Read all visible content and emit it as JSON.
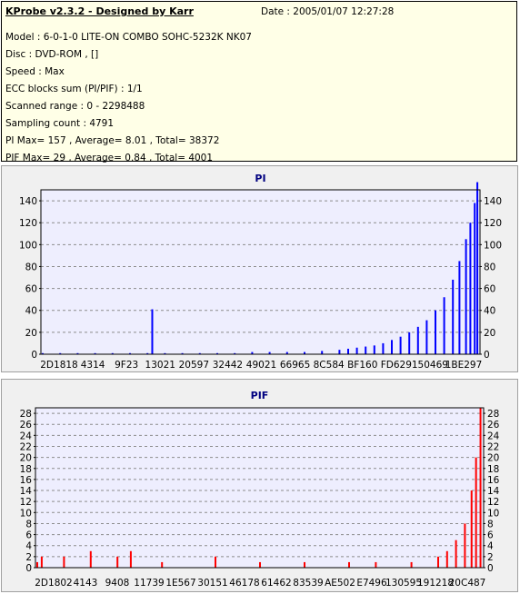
{
  "info": {
    "title": "KProbe v2.3.2 - Designed by Karr",
    "date": "Date : 2005/01/07 12:27:28",
    "lines": [
      "Model : 6-0-1-0 LITE-ON COMBO SOHC-5232K NK07",
      "Disc : DVD-ROM ,  []",
      "Speed : Max",
      "ECC blocks sum (PI/PIF) : 1/1",
      "Scanned range : 0 - 2298488",
      "Sampling count : 4791",
      "PI Max= 157 , Average= 8.01 , Total= 38372",
      "PIF Max= 29 , Average= 0.84 , Total= 4001"
    ]
  },
  "colors": {
    "panel_bg": "#f0f0f0",
    "plot_bg": "#eeeefe",
    "info_bg": "#ffffe7",
    "pi_bar": "#0000ff",
    "pif_bar": "#ff0000",
    "grid": "#8c8c8c"
  },
  "chart_data": [
    {
      "type": "bar",
      "title": "PI",
      "color": "#0000ff",
      "ylim": [
        0,
        150
      ],
      "yticks": [
        0,
        20,
        40,
        60,
        80,
        100,
        120,
        140
      ],
      "xlabels": [
        "2D1818",
        "4314",
        "9F23",
        "13021",
        "20597",
        "32442",
        "49021",
        "66965",
        "8C584",
        "BF160",
        "FD629",
        "150469",
        "1BE297"
      ],
      "grid": true,
      "bars": [
        {
          "pos": 0.0,
          "value": 1
        },
        {
          "pos": 0.04,
          "value": 1
        },
        {
          "pos": 0.08,
          "value": 1
        },
        {
          "pos": 0.12,
          "value": 1
        },
        {
          "pos": 0.16,
          "value": 1
        },
        {
          "pos": 0.2,
          "value": 1
        },
        {
          "pos": 0.24,
          "value": 1
        },
        {
          "pos": 0.251,
          "value": 41
        },
        {
          "pos": 0.28,
          "value": 1
        },
        {
          "pos": 0.32,
          "value": 1
        },
        {
          "pos": 0.36,
          "value": 1
        },
        {
          "pos": 0.4,
          "value": 1
        },
        {
          "pos": 0.44,
          "value": 1
        },
        {
          "pos": 0.48,
          "value": 2
        },
        {
          "pos": 0.52,
          "value": 2
        },
        {
          "pos": 0.56,
          "value": 2
        },
        {
          "pos": 0.6,
          "value": 2
        },
        {
          "pos": 0.64,
          "value": 3
        },
        {
          "pos": 0.68,
          "value": 4
        },
        {
          "pos": 0.7,
          "value": 5
        },
        {
          "pos": 0.72,
          "value": 6
        },
        {
          "pos": 0.74,
          "value": 7
        },
        {
          "pos": 0.76,
          "value": 8
        },
        {
          "pos": 0.78,
          "value": 10
        },
        {
          "pos": 0.8,
          "value": 13
        },
        {
          "pos": 0.82,
          "value": 16
        },
        {
          "pos": 0.84,
          "value": 20
        },
        {
          "pos": 0.86,
          "value": 25
        },
        {
          "pos": 0.88,
          "value": 31
        },
        {
          "pos": 0.9,
          "value": 40
        },
        {
          "pos": 0.92,
          "value": 52
        },
        {
          "pos": 0.94,
          "value": 68
        },
        {
          "pos": 0.955,
          "value": 85
        },
        {
          "pos": 0.97,
          "value": 105
        },
        {
          "pos": 0.98,
          "value": 120
        },
        {
          "pos": 0.99,
          "value": 138
        },
        {
          "pos": 0.996,
          "value": 157
        }
      ]
    },
    {
      "type": "bar",
      "title": "PIF",
      "color": "#ff0000",
      "ylim": [
        0,
        29
      ],
      "yticks": [
        0,
        2,
        4,
        6,
        8,
        10,
        12,
        14,
        16,
        18,
        20,
        22,
        24,
        26,
        28
      ],
      "xlabels": [
        "2D1802",
        "4143",
        "9408",
        "11739",
        "1E567",
        "30151",
        "46178",
        "61462",
        "83539",
        "AE502",
        "E7496",
        "130595",
        "191218",
        "20C487"
      ],
      "grid": true,
      "bars": [
        {
          "pos": 0.0,
          "value": 1
        },
        {
          "pos": 0.01,
          "value": 2
        },
        {
          "pos": 0.06,
          "value": 2
        },
        {
          "pos": 0.12,
          "value": 3
        },
        {
          "pos": 0.18,
          "value": 2
        },
        {
          "pos": 0.21,
          "value": 3
        },
        {
          "pos": 0.28,
          "value": 1
        },
        {
          "pos": 0.4,
          "value": 2
        },
        {
          "pos": 0.5,
          "value": 1
        },
        {
          "pos": 0.6,
          "value": 1
        },
        {
          "pos": 0.7,
          "value": 1
        },
        {
          "pos": 0.76,
          "value": 1
        },
        {
          "pos": 0.84,
          "value": 1
        },
        {
          "pos": 0.9,
          "value": 2
        },
        {
          "pos": 0.92,
          "value": 3
        },
        {
          "pos": 0.94,
          "value": 5
        },
        {
          "pos": 0.96,
          "value": 8
        },
        {
          "pos": 0.975,
          "value": 14
        },
        {
          "pos": 0.985,
          "value": 20
        },
        {
          "pos": 0.995,
          "value": 29
        }
      ]
    }
  ]
}
